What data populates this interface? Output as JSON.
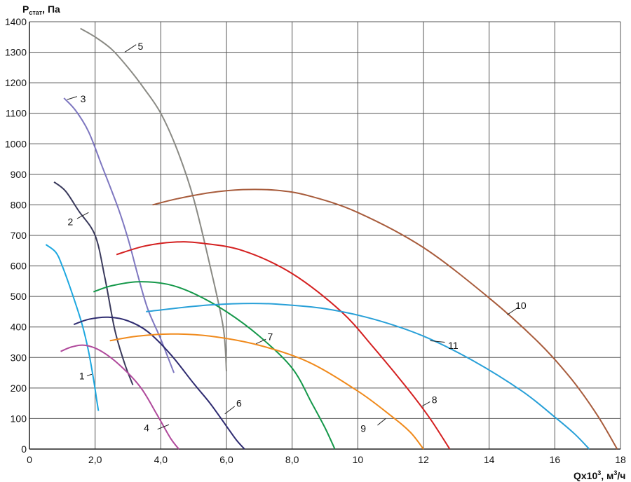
{
  "chart_data": {
    "type": "line",
    "ylabel": {
      "main": "P",
      "sub": "стат",
      "rest": ", Па"
    },
    "xlabel": {
      "main": "Qx10",
      "sup": "3",
      "rest": ", м",
      "sup2": "3",
      "end": "/ч"
    },
    "xlim": [
      0,
      18
    ],
    "ylim": [
      0,
      1400
    ],
    "grid": true,
    "x_ticks": [
      0,
      2,
      4,
      6,
      8,
      10,
      12,
      14,
      16,
      18
    ],
    "x_tick_labels": [
      "0",
      "2,0",
      "4,0",
      "6,0",
      "8,0",
      "10",
      "12",
      "14",
      "16",
      "18"
    ],
    "y_ticks": [
      0,
      100,
      200,
      300,
      400,
      500,
      600,
      700,
      800,
      900,
      1000,
      1100,
      1200,
      1300,
      1400
    ],
    "y_tick_labels": [
      "0",
      "100",
      "200",
      "300",
      "400",
      "500",
      "600",
      "700",
      "800",
      "900",
      "1000",
      "1100",
      "1200",
      "1300",
      "1400"
    ],
    "series": [
      {
        "name": "1",
        "color": "#1ea8e0",
        "points": [
          [
            0.5,
            670
          ],
          [
            0.8,
            645
          ],
          [
            1.0,
            600
          ],
          [
            1.3,
            510
          ],
          [
            1.6,
            410
          ],
          [
            1.8,
            320
          ],
          [
            1.95,
            230
          ],
          [
            2.05,
            160
          ],
          [
            2.1,
            125
          ]
        ],
        "label_at": [
          1.68,
          240
        ],
        "leader": [
          [
            1.9,
            245
          ],
          [
            1.75,
            240
          ]
        ]
      },
      {
        "name": "2",
        "color": "#3a3a5c",
        "points": [
          [
            0.75,
            875
          ],
          [
            1.1,
            845
          ],
          [
            1.5,
            780
          ],
          [
            2.0,
            700
          ],
          [
            2.3,
            560
          ],
          [
            2.6,
            390
          ],
          [
            2.9,
            280
          ],
          [
            3.15,
            210
          ]
        ],
        "label_at": [
          1.33,
          745
        ],
        "leader": [
          [
            1.8,
            775
          ],
          [
            1.45,
            755
          ]
        ]
      },
      {
        "name": "3",
        "color": "#7e77c0",
        "points": [
          [
            1.05,
            1150
          ],
          [
            1.4,
            1110
          ],
          [
            1.8,
            1040
          ],
          [
            2.2,
            930
          ],
          [
            2.7,
            790
          ],
          [
            3.0,
            690
          ],
          [
            3.3,
            570
          ],
          [
            3.6,
            460
          ],
          [
            4.0,
            360
          ],
          [
            4.4,
            250
          ]
        ],
        "label_at": [
          1.55,
          1148
        ],
        "leader": [
          [
            1.15,
            1145
          ],
          [
            1.45,
            1155
          ]
        ]
      },
      {
        "name": "4",
        "color": "#b04a9c",
        "points": [
          [
            0.95,
            320
          ],
          [
            1.3,
            335
          ],
          [
            1.7,
            340
          ],
          [
            2.2,
            320
          ],
          [
            2.8,
            270
          ],
          [
            3.4,
            200
          ],
          [
            3.9,
            110
          ],
          [
            4.3,
            35
          ],
          [
            4.55,
            0
          ]
        ],
        "label_at": [
          3.65,
          70
        ],
        "leader": [
          [
            4.25,
            80
          ],
          [
            3.9,
            65
          ]
        ]
      },
      {
        "name": "5",
        "color": "#8a8a84",
        "points": [
          [
            1.55,
            1378
          ],
          [
            2.0,
            1350
          ],
          [
            2.5,
            1310
          ],
          [
            3.0,
            1250
          ],
          [
            3.5,
            1180
          ],
          [
            4.0,
            1100
          ],
          [
            4.5,
            980
          ],
          [
            5.0,
            820
          ],
          [
            5.5,
            600
          ],
          [
            5.9,
            400
          ],
          [
            6.0,
            255
          ]
        ],
        "label_at": [
          3.3,
          1320
        ],
        "leader": [
          [
            2.9,
            1300
          ],
          [
            3.25,
            1325
          ]
        ]
      },
      {
        "name": "6",
        "color": "#2e2b70",
        "points": [
          [
            1.35,
            408
          ],
          [
            1.8,
            425
          ],
          [
            2.4,
            432
          ],
          [
            3.0,
            420
          ],
          [
            3.6,
            385
          ],
          [
            4.3,
            310
          ],
          [
            5.0,
            215
          ],
          [
            5.5,
            150
          ],
          [
            6.0,
            75
          ],
          [
            6.3,
            30
          ],
          [
            6.55,
            0
          ]
        ],
        "label_at": [
          6.3,
          150
        ],
        "leader": [
          [
            5.95,
            115
          ],
          [
            6.25,
            140
          ]
        ]
      },
      {
        "name": "7",
        "color": "#15984a",
        "points": [
          [
            1.95,
            515
          ],
          [
            2.5,
            535
          ],
          [
            3.3,
            548
          ],
          [
            4.2,
            540
          ],
          [
            5.0,
            510
          ],
          [
            6.0,
            450
          ],
          [
            7.0,
            370
          ],
          [
            8.0,
            265
          ],
          [
            8.6,
            150
          ],
          [
            9.0,
            70
          ],
          [
            9.3,
            0
          ]
        ],
        "label_at": [
          7.25,
          368
        ],
        "leader": [
          [
            6.9,
            345
          ],
          [
            7.2,
            360
          ]
        ]
      },
      {
        "name": "8",
        "color": "#d42020",
        "points": [
          [
            2.65,
            637
          ],
          [
            3.5,
            665
          ],
          [
            4.4,
            678
          ],
          [
            5.2,
            675
          ],
          [
            6.5,
            650
          ],
          [
            8.0,
            575
          ],
          [
            9.5,
            450
          ],
          [
            10.5,
            330
          ],
          [
            11.5,
            200
          ],
          [
            12.2,
            100
          ],
          [
            12.8,
            0
          ]
        ],
        "label_at": [
          12.25,
          162
        ],
        "leader": [
          [
            11.95,
            140
          ],
          [
            12.2,
            155
          ]
        ]
      },
      {
        "name": "9",
        "color": "#f08a1c",
        "points": [
          [
            2.45,
            355
          ],
          [
            3.3,
            370
          ],
          [
            4.3,
            377
          ],
          [
            5.5,
            370
          ],
          [
            7.0,
            340
          ],
          [
            8.5,
            285
          ],
          [
            10.0,
            190
          ],
          [
            11.0,
            110
          ],
          [
            11.6,
            55
          ],
          [
            12.0,
            0
          ]
        ],
        "label_at": [
          10.25,
          68
        ],
        "leader": [
          [
            10.85,
            100
          ],
          [
            10.6,
            78
          ]
        ]
      },
      {
        "name": "10",
        "color": "#a85c3c",
        "points": [
          [
            3.75,
            800
          ],
          [
            4.5,
            820
          ],
          [
            5.5,
            840
          ],
          [
            6.5,
            850
          ],
          [
            7.5,
            848
          ],
          [
            8.5,
            830
          ],
          [
            10.0,
            775
          ],
          [
            12.0,
            660
          ],
          [
            14.0,
            495
          ],
          [
            15.5,
            350
          ],
          [
            16.5,
            230
          ],
          [
            17.3,
            110
          ],
          [
            17.9,
            0
          ]
        ],
        "label_at": [
          14.8,
          470
        ],
        "leader": [
          [
            14.55,
            440
          ],
          [
            14.9,
            465
          ]
        ]
      },
      {
        "name": "11",
        "color": "#28a0d8",
        "points": [
          [
            3.55,
            450
          ],
          [
            4.5,
            462
          ],
          [
            5.5,
            472
          ],
          [
            6.5,
            477
          ],
          [
            7.5,
            475
          ],
          [
            9.0,
            460
          ],
          [
            10.5,
            425
          ],
          [
            12.0,
            370
          ],
          [
            13.5,
            290
          ],
          [
            15.0,
            190
          ],
          [
            16.0,
            105
          ],
          [
            16.6,
            50
          ],
          [
            17.05,
            0
          ]
        ],
        "label_at": [
          12.75,
          340
        ],
        "leader": [
          [
            12.2,
            355
          ],
          [
            12.65,
            350
          ]
        ]
      }
    ]
  }
}
